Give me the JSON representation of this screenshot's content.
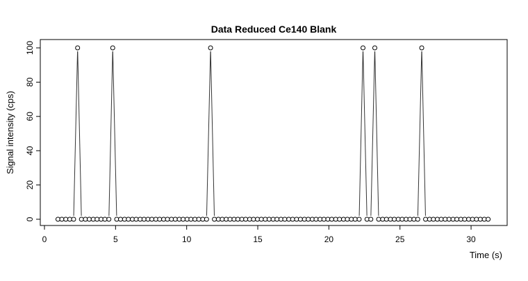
{
  "chart_data": {
    "type": "line",
    "title": "Data Reduced Ce140 Blank",
    "xlabel": "Time (s)",
    "ylabel": "Signal intensity (cps)",
    "xlim": [
      0,
      32
    ],
    "ylim": [
      0,
      100
    ],
    "x_ticks": [
      0,
      5,
      10,
      15,
      20,
      25,
      30
    ],
    "y_ticks": [
      0,
      20,
      40,
      60,
      80,
      100
    ],
    "grid": false,
    "legend": "none",
    "markers": "open-circle",
    "series": [
      {
        "x": [
          0.95,
          1.22,
          1.5,
          1.78,
          2.05,
          2.33,
          2.6,
          2.88,
          3.15,
          3.43,
          3.7,
          3.98,
          4.25,
          4.53,
          4.8,
          5.08,
          5.35,
          5.63,
          5.9,
          6.18,
          6.45,
          6.73,
          7.0,
          7.28,
          7.55,
          7.83,
          8.1,
          8.38,
          8.65,
          8.93,
          9.2,
          9.48,
          9.75,
          10.03,
          10.3,
          10.58,
          10.85,
          11.13,
          11.4,
          11.68,
          11.95,
          12.23,
          12.5,
          12.78,
          13.05,
          13.33,
          13.6,
          13.88,
          14.15,
          14.43,
          14.7,
          14.98,
          15.25,
          15.53,
          15.8,
          16.08,
          16.35,
          16.63,
          16.9,
          17.18,
          17.45,
          17.73,
          18.0,
          18.28,
          18.55,
          18.83,
          19.1,
          19.38,
          19.65,
          19.93,
          20.2,
          20.48,
          20.75,
          21.03,
          21.3,
          21.58,
          21.85,
          22.13,
          22.4,
          22.68,
          22.95,
          23.23,
          23.5,
          23.78,
          24.05,
          24.33,
          24.6,
          24.88,
          25.15,
          25.43,
          25.7,
          25.98,
          26.25,
          26.53,
          26.8,
          27.08,
          27.35,
          27.63,
          27.9,
          28.18,
          28.45,
          28.73,
          29.0,
          29.28,
          29.55,
          29.83,
          30.1,
          30.38,
          30.65,
          30.93,
          31.2
        ],
        "y": [
          0,
          0,
          0,
          0,
          0,
          100,
          0,
          0,
          0,
          0,
          0,
          0,
          0,
          0,
          100,
          0,
          0,
          0,
          0,
          0,
          0,
          0,
          0,
          0,
          0,
          0,
          0,
          0,
          0,
          0,
          0,
          0,
          0,
          0,
          0,
          0,
          0,
          0,
          0,
          100,
          0,
          0,
          0,
          0,
          0,
          0,
          0,
          0,
          0,
          0,
          0,
          0,
          0,
          0,
          0,
          0,
          0,
          0,
          0,
          0,
          0,
          0,
          0,
          0,
          0,
          0,
          0,
          0,
          0,
          0,
          0,
          0,
          0,
          0,
          0,
          0,
          0,
          0,
          100,
          0,
          0,
          100,
          0,
          0,
          0,
          0,
          0,
          0,
          0,
          0,
          0,
          0,
          0,
          100,
          0,
          0,
          0,
          0,
          0,
          0,
          0,
          0,
          0,
          0,
          0,
          0,
          0,
          0,
          0,
          0,
          0
        ]
      }
    ]
  }
}
